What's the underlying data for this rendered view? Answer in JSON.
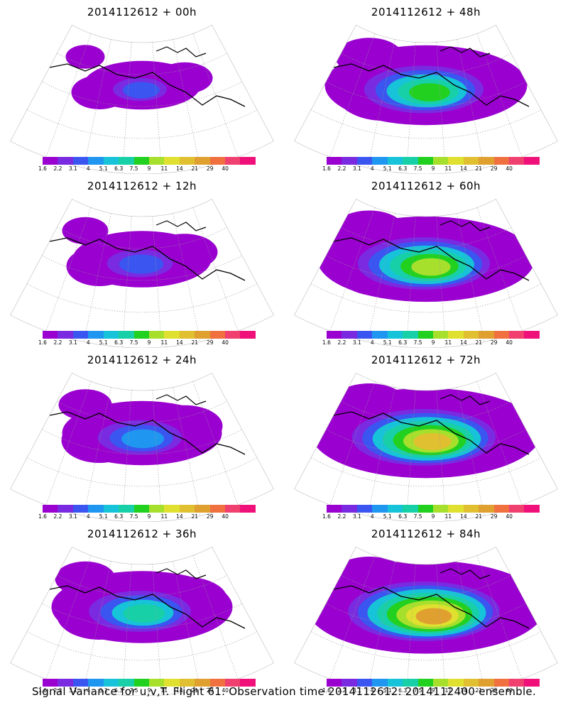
{
  "panels": [
    {
      "title": "2014112612 + 00h",
      "level": 0.15,
      "coverage": 0.35
    },
    {
      "title": "2014112612 + 48h",
      "level": 0.5,
      "coverage": 0.75
    },
    {
      "title": "2014112612 + 12h",
      "level": 0.2,
      "coverage": 0.45
    },
    {
      "title": "2014112612 + 60h",
      "level": 0.62,
      "coverage": 0.82
    },
    {
      "title": "2014112612 + 24h",
      "level": 0.28,
      "coverage": 0.55
    },
    {
      "title": "2014112612 + 72h",
      "level": 0.72,
      "coverage": 0.88
    },
    {
      "title": "2014112612 + 36h",
      "level": 0.4,
      "coverage": 0.65
    },
    {
      "title": "2014112612 + 84h",
      "level": 0.8,
      "coverage": 0.92
    }
  ],
  "colorbar": {
    "labels": [
      "1.6",
      "2.2",
      "3.1",
      "4",
      "5.1",
      "6.3",
      "7.5",
      "9",
      "11",
      "14",
      "21",
      "29",
      "40"
    ],
    "colors": [
      "#9a00d0",
      "#7a2ae0",
      "#3b55f0",
      "#1f96f0",
      "#16c3d8",
      "#18d0a8",
      "#22d020",
      "#a6e02c",
      "#e0e030",
      "#e0c030",
      "#e0a030",
      "#f07040",
      "#f04070",
      "#f0107a"
    ]
  },
  "footer": "Signal Variance for u,v,T. Flight 61. Observation time 2014112612. 2014112400 ensemble."
}
